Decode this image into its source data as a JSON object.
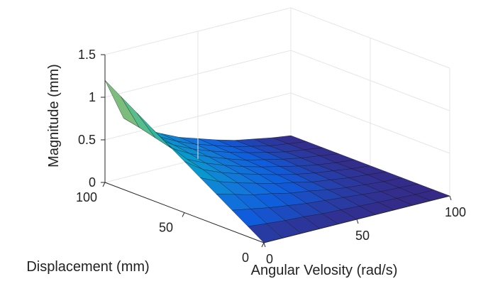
{
  "chart_data": {
    "type": "surface",
    "title": "",
    "x_label": "Angular Velosity (rad/s)",
    "y_label": "Displacement (mm)",
    "z_label": "Magnitude (mm)",
    "x_range": [
      0,
      100
    ],
    "y_range": [
      0,
      100
    ],
    "z_range": [
      0,
      1.5
    ],
    "x_ticks": [
      0,
      50,
      100
    ],
    "y_ticks": [
      0,
      50,
      100
    ],
    "z_ticks": [
      0,
      0.5,
      1,
      1.5
    ],
    "x_tick_labels": [
      "0",
      "50",
      "100"
    ],
    "y_tick_labels": [
      "0",
      "50",
      "100"
    ],
    "z_tick_labels": [
      "0",
      "0.5",
      "1",
      "1.5"
    ],
    "grid": true,
    "colormap": "parula",
    "x_grid": [
      0,
      10,
      20,
      30,
      40,
      50,
      60,
      70,
      80,
      90,
      100
    ],
    "y_grid": [
      0,
      10,
      20,
      30,
      40,
      50,
      60,
      70,
      80,
      90,
      100
    ],
    "z_values_by_displacement": [
      [
        0.0,
        0.0,
        0.0,
        0.0,
        0.0,
        0.0,
        0.0,
        0.0,
        0.0,
        0.0,
        0.0
      ],
      [
        0.12,
        0.1,
        0.08,
        0.07,
        0.05,
        0.04,
        0.03,
        0.02,
        0.01,
        0.0,
        0.0
      ],
      [
        0.24,
        0.2,
        0.16,
        0.13,
        0.1,
        0.08,
        0.06,
        0.04,
        0.02,
        0.01,
        0.0
      ],
      [
        0.36,
        0.3,
        0.24,
        0.2,
        0.15,
        0.12,
        0.08,
        0.05,
        0.03,
        0.01,
        0.0
      ],
      [
        0.48,
        0.38,
        0.31,
        0.25,
        0.19,
        0.15,
        0.1,
        0.07,
        0.04,
        0.02,
        0.0
      ],
      [
        0.6,
        0.45,
        0.36,
        0.29,
        0.23,
        0.17,
        0.12,
        0.08,
        0.05,
        0.02,
        0.0
      ],
      [
        0.72,
        0.5,
        0.4,
        0.32,
        0.25,
        0.19,
        0.14,
        0.09,
        0.05,
        0.02,
        0.0
      ],
      [
        0.84,
        0.56,
        0.44,
        0.35,
        0.27,
        0.2,
        0.15,
        0.1,
        0.06,
        0.03,
        0.0
      ],
      [
        0.96,
        0.61,
        0.47,
        0.37,
        0.29,
        0.22,
        0.16,
        0.11,
        0.06,
        0.03,
        0.0
      ],
      [
        1.08,
        0.66,
        0.5,
        0.39,
        0.3,
        0.23,
        0.16,
        0.11,
        0.06,
        0.03,
        0.0
      ],
      [
        1.2,
        0.7,
        0.52,
        0.41,
        0.31,
        0.24,
        0.17,
        0.11,
        0.07,
        0.03,
        0.0
      ]
    ]
  }
}
